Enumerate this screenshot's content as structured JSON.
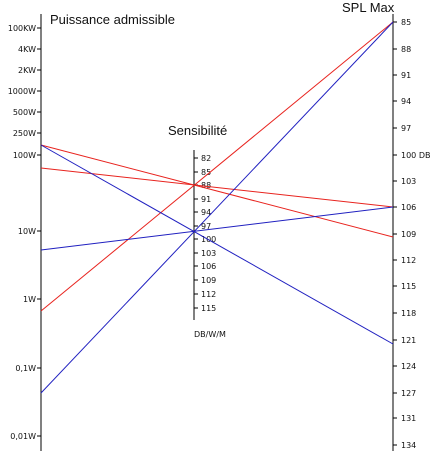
{
  "titles": {
    "left": "Puissance admissible",
    "middle": "Sensibilité",
    "right": "SPL Max"
  },
  "middle_unit": "DB/W/M",
  "left_axis_labels": [
    "100KW",
    "4KW",
    "2KW",
    "1000W",
    "500W",
    "250W",
    "100W",
    "10W",
    "1W",
    "0,1W",
    "0,01W"
  ],
  "middle_axis_labels": [
    "82",
    "85",
    "88",
    "91",
    "94",
    "97",
    "100",
    "103",
    "106",
    "109",
    "112",
    "115"
  ],
  "right_axis_labels": [
    "85",
    "88",
    "91",
    "94",
    "97",
    "100 DB",
    "103",
    "106",
    "109",
    "112",
    "115",
    "118",
    "121",
    "124",
    "127",
    "131",
    "134"
  ],
  "colors": {
    "red": "#e8231e",
    "blue": "#2020c0"
  },
  "example_lines": [
    {
      "name": "red-line-a",
      "color": "red"
    },
    {
      "name": "red-line-b",
      "color": "red"
    },
    {
      "name": "red-line-c",
      "color": "red"
    },
    {
      "name": "blue-line-a",
      "color": "blue"
    },
    {
      "name": "blue-line-b",
      "color": "blue"
    },
    {
      "name": "blue-line-c",
      "color": "blue"
    }
  ]
}
